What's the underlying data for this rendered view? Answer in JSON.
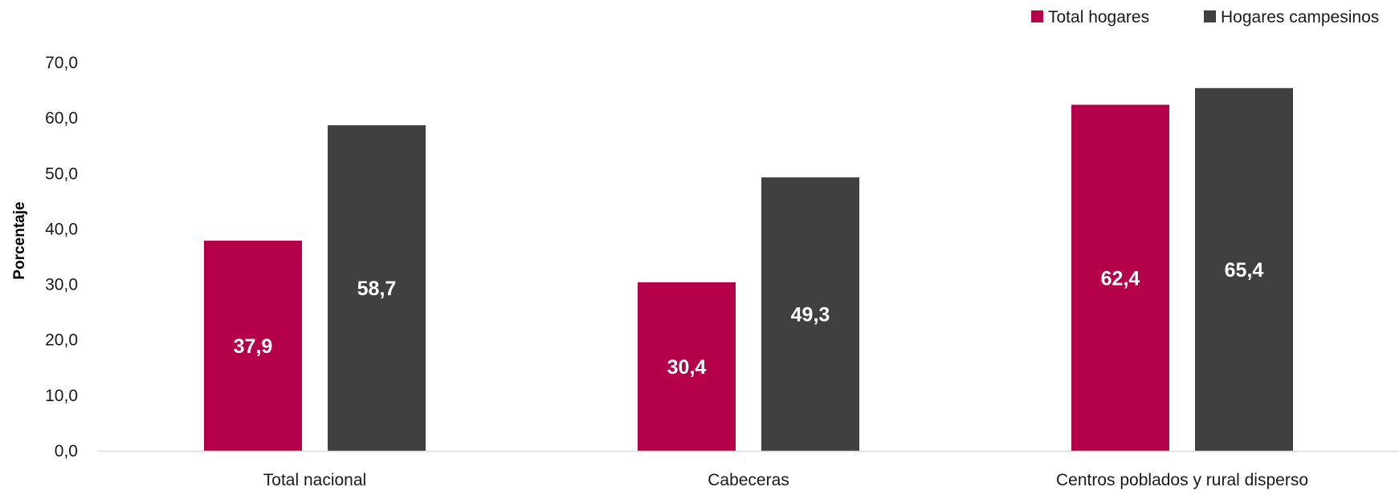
{
  "chart_data": {
    "type": "bar",
    "categories": [
      "Total nacional",
      "Cabeceras",
      "Centros poblados y rural disperso"
    ],
    "series": [
      {
        "name": "Total hogares",
        "values": [
          37.9,
          30.4,
          62.4
        ],
        "labels": [
          "37,9",
          "30,4",
          "62,4"
        ],
        "color": "#b5004a"
      },
      {
        "name": "Hogares campesinos",
        "values": [
          58.7,
          49.3,
          65.4
        ],
        "labels": [
          "58,7",
          "49,3",
          "65,4"
        ],
        "color": "#404040"
      }
    ],
    "ylabel": "Porcentaje",
    "ylim": [
      0,
      70
    ],
    "yticks": [
      0,
      10,
      20,
      30,
      40,
      50,
      60,
      70
    ],
    "ytick_labels": [
      "0,0",
      "10,0",
      "20,0",
      "30,0",
      "40,0",
      "50,0",
      "60,0",
      "70,0"
    ],
    "legend_position": "top-right",
    "grid": false
  }
}
